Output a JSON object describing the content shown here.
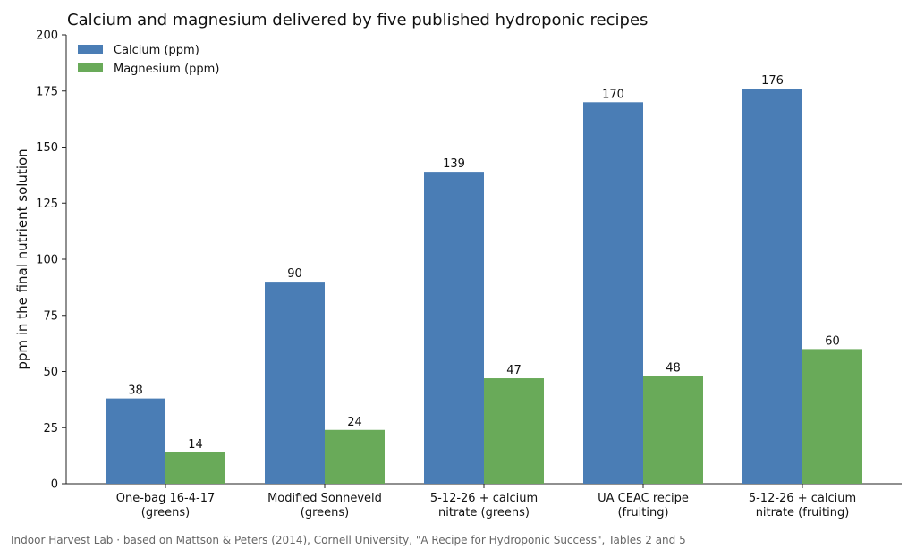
{
  "chart_data": {
    "type": "bar",
    "title": "Calcium and magnesium delivered by five published hydroponic recipes",
    "ylabel": "ppm in the final nutrient solution",
    "xlabel": "",
    "ylim": [
      0,
      200
    ],
    "yticks": [
      "0",
      "25",
      "50",
      "75",
      "100",
      "125",
      "150",
      "175",
      "200"
    ],
    "categories": [
      [
        "One-bag 16-4-17",
        "(greens)"
      ],
      [
        "Modified Sonneveld",
        "(greens)"
      ],
      [
        "5-12-26 + calcium",
        "nitrate (greens)"
      ],
      [
        "UA CEAC recipe",
        "(fruiting)"
      ],
      [
        "5-12-26 + calcium",
        "nitrate (fruiting)"
      ]
    ],
    "series": [
      {
        "name": "Calcium (ppm)",
        "color": "#4a7db5",
        "values": [
          38,
          90,
          139,
          170,
          176
        ]
      },
      {
        "name": "Magnesium (ppm)",
        "color": "#69aa59",
        "values": [
          14,
          24,
          47,
          48,
          60
        ]
      }
    ],
    "legend_position": "top-left",
    "grid": false
  },
  "footer": "Indoor Harvest Lab · based on Mattson & Peters (2014), Cornell University, \"A Recipe for Hydroponic Success\", Tables 2 and 5"
}
